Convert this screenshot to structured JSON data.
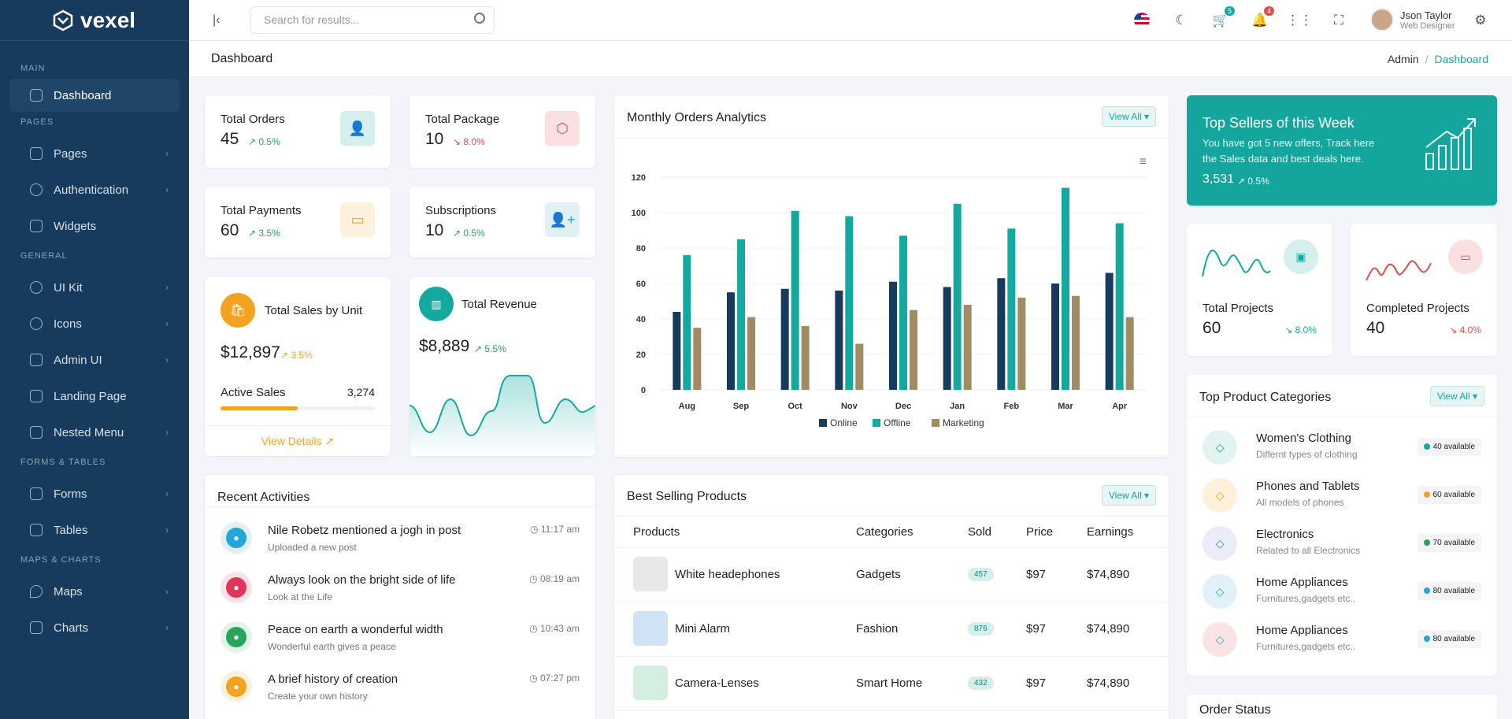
{
  "app": {
    "name": "vexel"
  },
  "search": {
    "placeholder": "Search for results..."
  },
  "topbar": {
    "cart_count": "5",
    "bell_count": "4",
    "user_name": "Json Taylor",
    "user_role": "Web Designer"
  },
  "page": {
    "title": "Dashboard",
    "crumb_root": "Admin",
    "crumb_current": "Dashboard"
  },
  "sidebar": {
    "sections": [
      "MAIN",
      "PAGES",
      "GENERAL",
      "FORMS & TABLES",
      "MAPS & CHARTS"
    ],
    "items": [
      {
        "label": "Dashboard"
      },
      {
        "label": "Pages"
      },
      {
        "label": "Authentication"
      },
      {
        "label": "Widgets"
      },
      {
        "label": "UI Kit"
      },
      {
        "label": "Icons"
      },
      {
        "label": "Admin UI"
      },
      {
        "label": "Landing Page"
      },
      {
        "label": "Nested Menu"
      },
      {
        "label": "Forms"
      },
      {
        "label": "Tables"
      },
      {
        "label": "Maps"
      },
      {
        "label": "Charts"
      }
    ]
  },
  "stats": [
    {
      "label": "Total Orders",
      "value": "45",
      "pct": "0.5%",
      "trend": "up"
    },
    {
      "label": "Total Package",
      "value": "10",
      "pct": "8.0%",
      "trend": "down"
    },
    {
      "label": "Total Payments",
      "value": "60",
      "pct": "3.5%",
      "trend": "up"
    },
    {
      "label": "Subscriptions",
      "value": "10",
      "pct": "0.5%",
      "trend": "up"
    }
  ],
  "sales_unit": {
    "title": "Total Sales by Unit",
    "value": "$12,897",
    "pct": "3.5%",
    "active_label": "Active Sales",
    "active_value": "3,274",
    "progress": 0.5,
    "link": "View Details"
  },
  "revenue": {
    "title": "Total Revenue",
    "value": "$8,889",
    "pct": "5.5%"
  },
  "monthly": {
    "title": "Monthly Orders Analytics",
    "view_all": "View All"
  },
  "chart_data": {
    "type": "bar",
    "categories": [
      "Aug",
      "Sep",
      "Oct",
      "Nov",
      "Dec",
      "Jan",
      "Feb",
      "Mar",
      "Apr"
    ],
    "series": [
      {
        "name": "Online",
        "color": "#173b5c",
        "values": [
          44,
          55,
          57,
          56,
          61,
          58,
          63,
          60,
          66
        ]
      },
      {
        "name": "Offline",
        "color": "#13a99f",
        "values": [
          76,
          85,
          101,
          98,
          87,
          105,
          91,
          114,
          94
        ]
      },
      {
        "name": "Marketing",
        "color": "#a08c63",
        "values": [
          35,
          41,
          36,
          26,
          45,
          48,
          52,
          53,
          41
        ]
      }
    ],
    "yticks": [
      0,
      20,
      40,
      60,
      80,
      100,
      120
    ],
    "ylim": [
      0,
      120
    ],
    "legend": "bottom",
    "grid": true
  },
  "top_sellers": {
    "title": "Top Sellers of this Week",
    "desc1": "You have got 5 new offers, Track here",
    "desc2": "the Sales data and best deals here.",
    "value": "3,531",
    "pct": "0.5%"
  },
  "projects": [
    {
      "label": "Total Projects",
      "value": "60",
      "pct": "8.0%"
    },
    {
      "label": "Completed Projects",
      "value": "40",
      "pct": "4.0%"
    }
  ],
  "categories_card": {
    "title": "Top Product Categories",
    "view_all": "View All",
    "items": [
      {
        "name": "Women's Clothing",
        "desc": "Differnt types of clothing",
        "avail": "40 available",
        "color": "#13a99f",
        "bg": "#e2f4f2"
      },
      {
        "name": "Phones and Tablets",
        "desc": "All models of phones",
        "avail": "60 available",
        "color": "#f4a321",
        "bg": "#fdf1dc"
      },
      {
        "name": "Electronics",
        "desc": "Related to all Electronics",
        "avail": "70 available",
        "color": "#26a65b",
        "bg": "#eaecf8"
      },
      {
        "name": "Home Appliances",
        "desc": "Furnitures,gadgets etc..",
        "avail": "80 available",
        "color": "#22a7d8",
        "bg": "#e1f1f8"
      },
      {
        "name": "Home Appliances",
        "desc": "Furnitures,gadgets etc..",
        "avail": "80 available",
        "color": "#22a7d8",
        "bg": "#fbe4e6"
      }
    ]
  },
  "order_status": {
    "title": "Order Status"
  },
  "activities": {
    "title": "Recent Activities",
    "items": [
      {
        "title": "Nile Robetz mentioned a jogh in post",
        "sub": "Uploaded a new post",
        "time": "11:17 am",
        "color": "#22a7d8",
        "bg": "#dff0f7"
      },
      {
        "title": "Always look on the bright side of life",
        "sub": "Look at the Life",
        "time": "08:19 am",
        "color": "#e5345a",
        "bg": "#fbe3e8"
      },
      {
        "title": "Peace on earth a wonderful width",
        "sub": "Wonderful earth gives a peace",
        "time": "10:43 am",
        "color": "#26a65b",
        "bg": "#e2f4e8"
      },
      {
        "title": "A brief history of creation",
        "sub": "Create your own history",
        "time": "07:27 pm",
        "color": "#f4a321",
        "bg": "#fdf1dc"
      }
    ]
  },
  "best_selling": {
    "title": "Best Selling Products",
    "view_all": "View All",
    "headers": [
      "Products",
      "Categories",
      "Sold",
      "Price",
      "Earnings"
    ],
    "rows": [
      {
        "product": "White headephones",
        "category": "Gadgets",
        "sold": "457",
        "price": "$97",
        "earnings": "$74,890"
      },
      {
        "product": "Mini Alarm",
        "category": "Fashion",
        "sold": "876",
        "price": "$97",
        "earnings": "$74,890"
      },
      {
        "product": "Camera-Lenses",
        "category": "Smart Home",
        "sold": "432",
        "price": "$97",
        "earnings": "$74,890"
      }
    ]
  }
}
